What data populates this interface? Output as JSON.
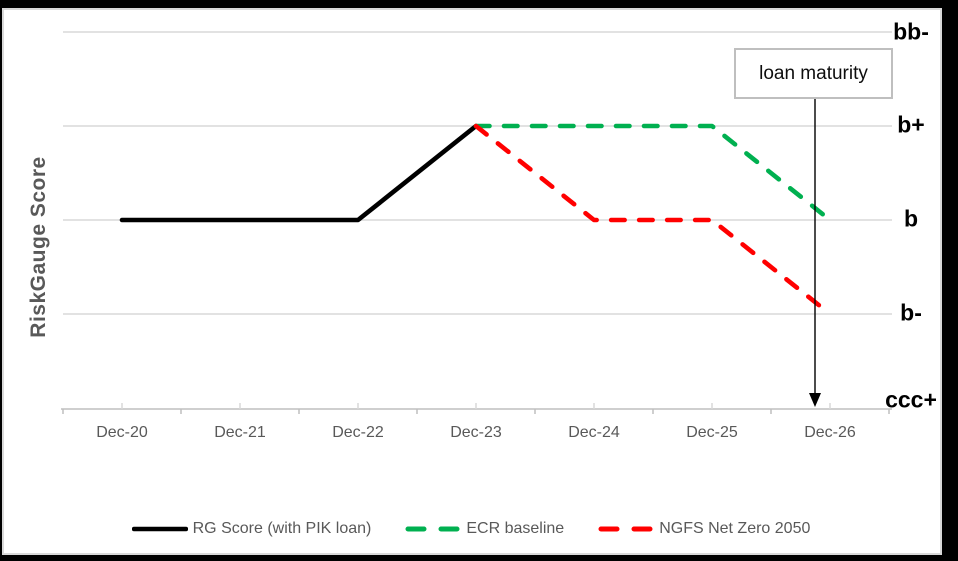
{
  "chart_data": {
    "type": "line",
    "title": "",
    "xlabel": "",
    "ylabel": "RiskGauge Score",
    "categories": [
      "Dec-20",
      "Dec-21",
      "Dec-22",
      "Dec-23",
      "Dec-24",
      "Dec-25",
      "Dec-26"
    ],
    "score_levels": [
      "bb-",
      "b+",
      "b",
      "b-",
      "ccc+"
    ],
    "grid": true,
    "legend_position": "bottom",
    "series": [
      {
        "name": "RG Score (with PIK loan)",
        "color": "#000000",
        "dash": "solid",
        "values": [
          "b",
          "b",
          "b",
          "b+",
          null,
          null,
          null
        ]
      },
      {
        "name": "ECR baseline",
        "color": "#00B050",
        "dash": "dashed",
        "values": [
          null,
          null,
          null,
          "b+",
          "b+",
          "b+",
          "b"
        ]
      },
      {
        "name": "NGFS Net Zero 2050",
        "color": "#FF0000",
        "dash": "dashed",
        "values": [
          null,
          null,
          null,
          "b+",
          "b",
          "b",
          "b-"
        ]
      }
    ],
    "annotation": {
      "label": "loan maturity",
      "points_between": [
        "Dec-25",
        "Dec-26"
      ]
    },
    "colors": {
      "gridline": "#D9D9D9",
      "axis_line": "#BFBFBF",
      "axis_text": "#595959",
      "score_text": "#000000",
      "annotation_border": "#BFBFBF"
    }
  }
}
